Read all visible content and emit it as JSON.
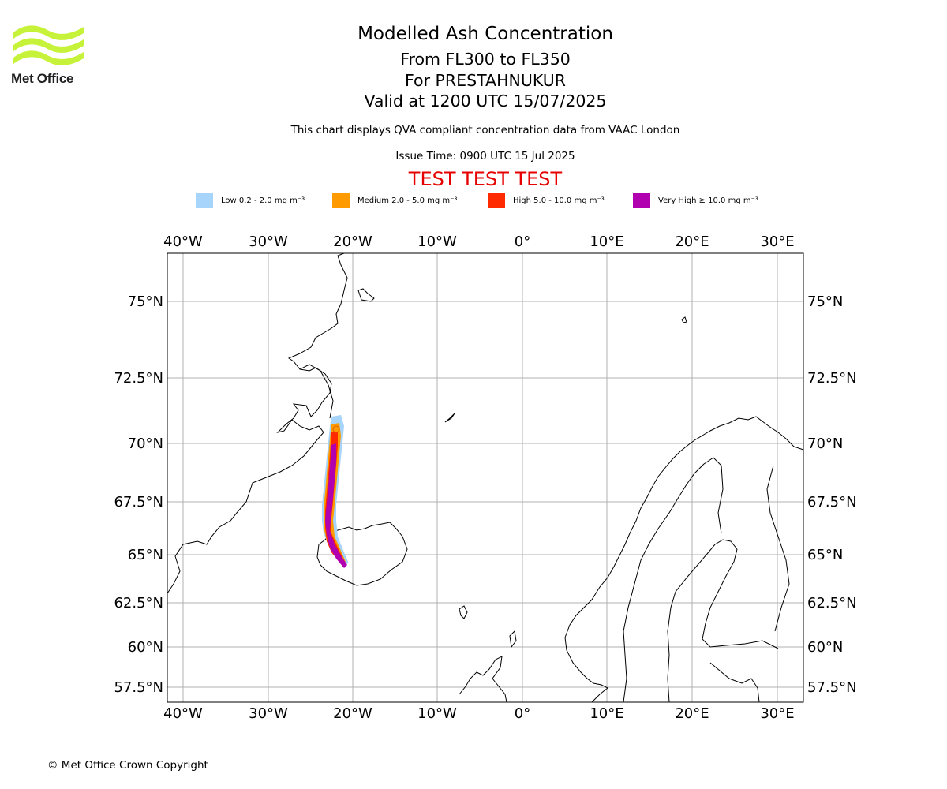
{
  "logo": {
    "text": "Met Office"
  },
  "header": {
    "title": "Modelled Ash Concentration",
    "levels": "From FL300 to FL350",
    "volcano": "For PRESTAHNUKUR",
    "valid": "Valid at 1200 UTC 15/07/2025",
    "note": "This chart displays QVA compliant concentration data from VAAC London",
    "issue": "Issue Time: 0900 UTC 15 Jul 2025",
    "test_banner": "TEST TEST TEST"
  },
  "legend": [
    {
      "label": "Low 0.2 - 2.0 mg m⁻³",
      "color": "#a6d4fa"
    },
    {
      "label": "Medium 2.0 - 5.0 mg m⁻³",
      "color": "#ff9a00"
    },
    {
      "label": "High 5.0 - 10.0 mg m⁻³",
      "color": "#ff2a00"
    },
    {
      "label": "Very High ≥ 10.0 mg m⁻³",
      "color": "#b000b0"
    }
  ],
  "map": {
    "lon_ticks": [
      "40°W",
      "30°W",
      "20°W",
      "10°W",
      "0°",
      "10°E",
      "20°E",
      "30°E"
    ],
    "lat_ticks": [
      "75°N",
      "72.5°N",
      "70°N",
      "67.5°N",
      "65°N",
      "62.5°N",
      "60°N",
      "57.5°N"
    ],
    "colors": {
      "grid": "#b0b0b0",
      "coast": "#000000",
      "frame": "#000000"
    }
  },
  "footer": {
    "copyright": "© Met Office Crown Copyright"
  }
}
